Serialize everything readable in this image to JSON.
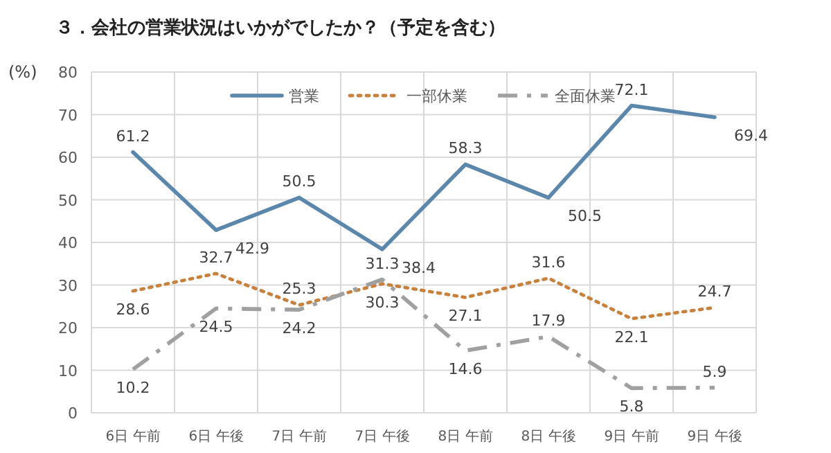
{
  "chart_data": {
    "type": "line",
    "title": "３．会社の営業状況はいかがでしたか？（予定を含む）",
    "ylabel": "(%)",
    "categories": [
      "6日 午前",
      "6日 午後",
      "7日 午前",
      "7日 午後",
      "8日 午前",
      "8日 午後",
      "9日 午前",
      "9日 午後"
    ],
    "series": [
      {
        "name": "営業",
        "color": "#5b87ad",
        "line_style": "solid",
        "values": [
          61.2,
          42.9,
          50.5,
          38.4,
          58.3,
          50.5,
          72.1,
          69.4
        ]
      },
      {
        "name": "一部休業",
        "color": "#c8803a",
        "line_style": "dotted",
        "values": [
          28.6,
          32.7,
          25.3,
          30.3,
          27.1,
          31.6,
          22.1,
          24.7
        ]
      },
      {
        "name": "全面休業",
        "color": "#a0a0a0",
        "line_style": "dashdot",
        "values": [
          10.2,
          24.5,
          24.2,
          31.3,
          14.6,
          17.9,
          5.8,
          5.9
        ]
      }
    ],
    "ylim": [
      0,
      80
    ],
    "yticks": [
      0,
      10,
      20,
      30,
      40,
      50,
      60,
      70,
      80
    ],
    "grid": true,
    "legend": "top",
    "data_labels": true,
    "marker": "none"
  }
}
